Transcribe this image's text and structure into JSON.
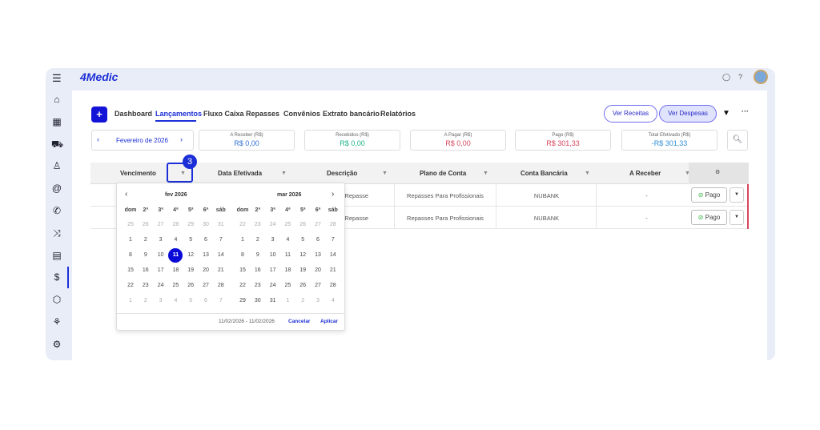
{
  "app": {
    "logo": "4Medic"
  },
  "sidebar": {
    "items": [
      "home",
      "calendar",
      "car",
      "user",
      "at",
      "phone",
      "shuffle",
      "clipboard",
      "dollar",
      "box",
      "chart",
      "gear"
    ]
  },
  "nav": {
    "add_label": "+",
    "tabs": [
      "Dashboard",
      "Lançamentos",
      "Fluxo Caixa",
      "Repasses",
      "Convênios",
      "Extrato bancário",
      "Relatórios"
    ],
    "active": "Lançamentos"
  },
  "actions": {
    "ver_receitas": "Ver Receitas",
    "ver_despesas": "Ver Despesas"
  },
  "period": {
    "label": "Fevereiro de 2026"
  },
  "kpis": [
    {
      "label": "A Receber (R$)",
      "value": "R$ 0,00",
      "color": "#2f6fd6"
    },
    {
      "label": "Recebidos (R$)",
      "value": "R$ 0,00",
      "color": "#1fb38a"
    },
    {
      "label": "A Pagar (R$)",
      "value": "R$ 0,00",
      "color": "#d9465d"
    },
    {
      "label": "Pago (R$)",
      "value": "R$ 301,33",
      "color": "#d9465d"
    },
    {
      "label": "Total Efetivado (R$)",
      "value": "-R$ 301,33",
      "color": "#2f8fd6"
    }
  ],
  "table": {
    "headers": [
      "Vencimento",
      "Data Efetivada",
      "Descrição",
      "Plano de Conta",
      "Conta Bancária",
      "A Receber"
    ],
    "rows": [
      {
        "descricao": "de Repasse",
        "plano": "Repasses Para Profissionais",
        "conta": "NUBANK",
        "receber": "-",
        "status": "Pago"
      },
      {
        "descricao": "de Repasse",
        "plano": "Repasses Para Profissionais",
        "conta": "NUBANK",
        "receber": "-",
        "status": "Pago"
      }
    ]
  },
  "step_badge": "3",
  "calendar": {
    "left_title": "fev 2026",
    "right_title": "mar 2026",
    "weekdays": [
      "dom",
      "2ª",
      "3ª",
      "4ª",
      "5ª",
      "6ª",
      "sáb"
    ],
    "left_days": [
      [
        25,
        26,
        27,
        28,
        29,
        30,
        31
      ],
      [
        1,
        2,
        3,
        4,
        5,
        6,
        7
      ],
      [
        8,
        9,
        10,
        11,
        12,
        13,
        14
      ],
      [
        15,
        16,
        17,
        18,
        19,
        20,
        21
      ],
      [
        22,
        23,
        24,
        25,
        26,
        27,
        28
      ],
      [
        1,
        2,
        3,
        4,
        5,
        6,
        7
      ]
    ],
    "right_days": [
      [
        22,
        23,
        24,
        25,
        26,
        27,
        28
      ],
      [
        1,
        2,
        3,
        4,
        5,
        6,
        7
      ],
      [
        8,
        9,
        10,
        11,
        12,
        13,
        14
      ],
      [
        15,
        16,
        17,
        18,
        19,
        20,
        21
      ],
      [
        22,
        23,
        24,
        25,
        26,
        27,
        28
      ],
      [
        29,
        30,
        31,
        1,
        2,
        3,
        4
      ]
    ],
    "selected": 11,
    "range": "11/02/2026 - 11/02/2026",
    "cancel": "Cancelar",
    "apply": "Aplicar"
  }
}
